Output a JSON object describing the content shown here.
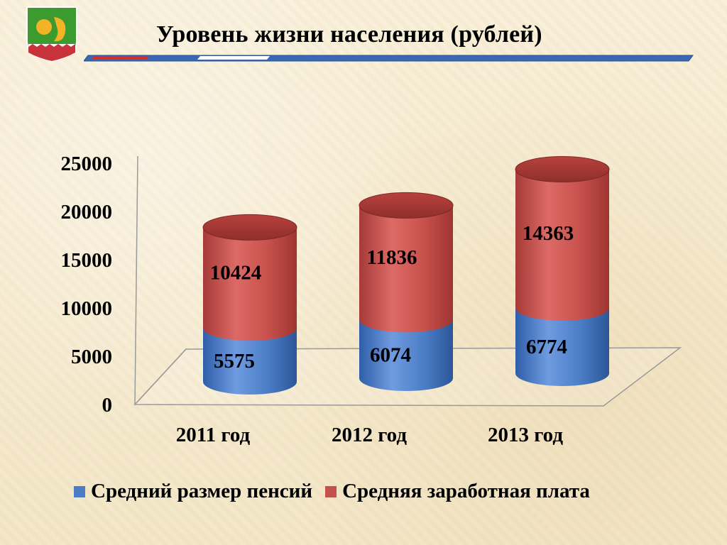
{
  "slide": {
    "title": "Уровень жизни населения (рублей)"
  },
  "chart_data": {
    "type": "bar",
    "stacked": true,
    "style": "3d-cylinder",
    "title": "",
    "xlabel": "",
    "ylabel": "",
    "categories": [
      "2011 год",
      "2012 год",
      "2013 год"
    ],
    "ylim": [
      0,
      25000
    ],
    "yticks": [
      0,
      5000,
      10000,
      15000,
      20000,
      25000
    ],
    "yticks_labels": [
      "0",
      "5000",
      "10000",
      "15000",
      "20000",
      "25000"
    ],
    "grid": false,
    "legend": "bottom",
    "series": [
      {
        "name": "Средний размер пенсий",
        "values": [
          5575,
          6074,
          6774
        ],
        "color": "#4a7dc6"
      },
      {
        "name": "Средняя заработная плата",
        "values": [
          10424,
          11836,
          14363
        ],
        "color": "#c6504c"
      }
    ],
    "data_labels": {
      "series_0": [
        "5575",
        "6074",
        "6774"
      ],
      "series_1": [
        "10424",
        "11836",
        "14363"
      ]
    }
  }
}
